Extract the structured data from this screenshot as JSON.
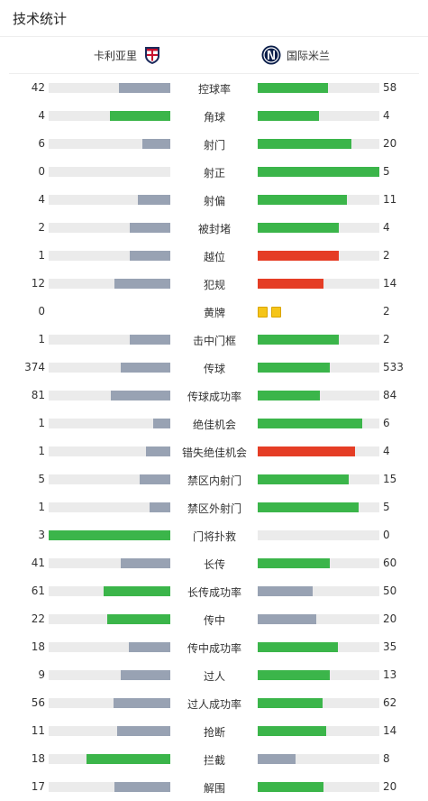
{
  "header": {
    "title": "技术统计"
  },
  "teams": {
    "home": "卡利亚里",
    "away": "国际米兰"
  },
  "colors": {
    "green": "#3bb54a",
    "gray": "#98a2b3",
    "red": "#e53d25",
    "track": "#ebebeb",
    "yellow_card": "#f5c518"
  },
  "stats": [
    {
      "label": "控球率",
      "home": "42",
      "away": "58",
      "home_frac": 0.42,
      "away_frac": 0.58,
      "home_color": "gray",
      "away_color": "green"
    },
    {
      "label": "角球",
      "home": "4",
      "away": "4",
      "home_frac": 0.5,
      "away_frac": 0.5,
      "home_color": "green",
      "away_color": "green"
    },
    {
      "label": "射门",
      "home": "6",
      "away": "20",
      "home_frac": 0.23,
      "away_frac": 0.77,
      "home_color": "gray",
      "away_color": "green"
    },
    {
      "label": "射正",
      "home": "0",
      "away": "5",
      "home_frac": 0.0,
      "away_frac": 1.0,
      "home_color": "gray",
      "away_color": "green"
    },
    {
      "label": "射偏",
      "home": "4",
      "away": "11",
      "home_frac": 0.27,
      "away_frac": 0.73,
      "home_color": "gray",
      "away_color": "green"
    },
    {
      "label": "被封堵",
      "home": "2",
      "away": "4",
      "home_frac": 0.33,
      "away_frac": 0.67,
      "home_color": "gray",
      "away_color": "green"
    },
    {
      "label": "越位",
      "home": "1",
      "away": "2",
      "home_frac": 0.33,
      "away_frac": 0.67,
      "home_color": "gray",
      "away_color": "red"
    },
    {
      "label": "犯规",
      "home": "12",
      "away": "14",
      "home_frac": 0.46,
      "away_frac": 0.54,
      "home_color": "gray",
      "away_color": "red"
    },
    {
      "label": "黄牌",
      "home": "0",
      "away": "2",
      "cards": 2
    },
    {
      "label": "击中门框",
      "home": "1",
      "away": "2",
      "home_frac": 0.33,
      "away_frac": 0.67,
      "home_color": "gray",
      "away_color": "green"
    },
    {
      "label": "传球",
      "home": "374",
      "away": "533",
      "home_frac": 0.41,
      "away_frac": 0.59,
      "home_color": "gray",
      "away_color": "green"
    },
    {
      "label": "传球成功率",
      "home": "81",
      "away": "84",
      "home_frac": 0.49,
      "away_frac": 0.51,
      "home_color": "gray",
      "away_color": "green"
    },
    {
      "label": "绝佳机会",
      "home": "1",
      "away": "6",
      "home_frac": 0.14,
      "away_frac": 0.86,
      "home_color": "gray",
      "away_color": "green"
    },
    {
      "label": "错失绝佳机会",
      "home": "1",
      "away": "4",
      "home_frac": 0.2,
      "away_frac": 0.8,
      "home_color": "gray",
      "away_color": "red"
    },
    {
      "label": "禁区内射门",
      "home": "5",
      "away": "15",
      "home_frac": 0.25,
      "away_frac": 0.75,
      "home_color": "gray",
      "away_color": "green"
    },
    {
      "label": "禁区外射门",
      "home": "1",
      "away": "5",
      "home_frac": 0.17,
      "away_frac": 0.83,
      "home_color": "gray",
      "away_color": "green"
    },
    {
      "label": "门将扑救",
      "home": "3",
      "away": "0",
      "home_frac": 1.0,
      "away_frac": 0.0,
      "home_color": "green",
      "away_color": "gray"
    },
    {
      "label": "长传",
      "home": "41",
      "away": "60",
      "home_frac": 0.41,
      "away_frac": 0.59,
      "home_color": "gray",
      "away_color": "green"
    },
    {
      "label": "长传成功率",
      "home": "61",
      "away": "50",
      "home_frac": 0.55,
      "away_frac": 0.45,
      "home_color": "green",
      "away_color": "gray"
    },
    {
      "label": "传中",
      "home": "22",
      "away": "20",
      "home_frac": 0.52,
      "away_frac": 0.48,
      "home_color": "green",
      "away_color": "gray"
    },
    {
      "label": "传中成功率",
      "home": "18",
      "away": "35",
      "home_frac": 0.34,
      "away_frac": 0.66,
      "home_color": "gray",
      "away_color": "green"
    },
    {
      "label": "过人",
      "home": "9",
      "away": "13",
      "home_frac": 0.41,
      "away_frac": 0.59,
      "home_color": "gray",
      "away_color": "green"
    },
    {
      "label": "过人成功率",
      "home": "56",
      "away": "62",
      "home_frac": 0.47,
      "away_frac": 0.53,
      "home_color": "gray",
      "away_color": "green"
    },
    {
      "label": "抢断",
      "home": "11",
      "away": "14",
      "home_frac": 0.44,
      "away_frac": 0.56,
      "home_color": "gray",
      "away_color": "green"
    },
    {
      "label": "拦截",
      "home": "18",
      "away": "8",
      "home_frac": 0.69,
      "away_frac": 0.31,
      "home_color": "green",
      "away_color": "gray"
    },
    {
      "label": "解围",
      "home": "17",
      "away": "20",
      "home_frac": 0.46,
      "away_frac": 0.54,
      "home_color": "gray",
      "away_color": "green"
    }
  ]
}
